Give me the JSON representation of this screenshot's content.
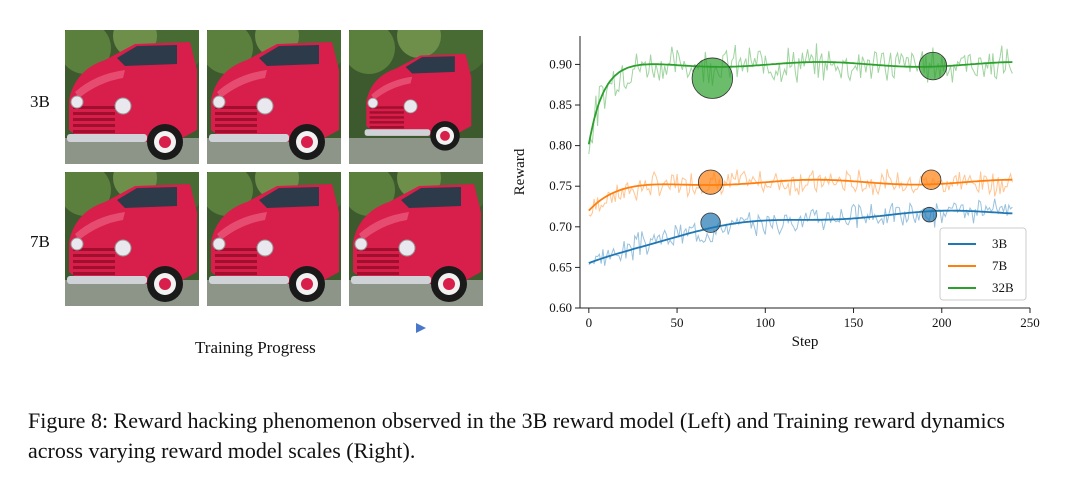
{
  "figure": {
    "row_labels": [
      "3B",
      "7B"
    ],
    "progress_label": "Training Progress",
    "caption": "Figure 8: Reward hacking phenomenon observed in the 3B reward model (Left) and Training reward dynamics across varying reward model scales (Right).",
    "colors": {
      "truck_red": "#d81e4a",
      "arrow_start": "#5fd0a8",
      "arrow_end": "#4a78c8"
    },
    "image_grid": {
      "rows": 2,
      "cols": 3,
      "image_alt": "red vintage pickup truck"
    }
  },
  "chart_data": {
    "type": "line",
    "title": "",
    "xlabel": "Step",
    "ylabel": "Reward",
    "xlim": [
      -5,
      250
    ],
    "ylim": [
      0.6,
      0.935
    ],
    "xticks": [
      0,
      50,
      100,
      150,
      200,
      250
    ],
    "yticks": [
      0.6,
      0.65,
      0.7,
      0.75,
      0.8,
      0.85,
      0.9
    ],
    "legend_position": "bottom-right",
    "series": [
      {
        "name": "3B",
        "color": "#1f77b4",
        "start": 0.655,
        "plateau": 0.72,
        "rate": 0.015,
        "noise": 0.012,
        "seed": 3
      },
      {
        "name": "7B",
        "color": "#ff7f0e",
        "start": 0.718,
        "plateau": 0.755,
        "rate": 0.06,
        "noise": 0.012,
        "seed": 7
      },
      {
        "name": "32B",
        "color": "#2ca02c",
        "start": 0.8,
        "plateau": 0.9,
        "rate": 0.12,
        "noise": 0.018,
        "seed": 32
      }
    ],
    "steps": 240,
    "highlights": [
      {
        "series": "32B",
        "x": 70,
        "y": 0.883,
        "r": 0.025,
        "color": "#2ca02c"
      },
      {
        "series": "32B",
        "x": 195,
        "y": 0.898,
        "r": 0.017,
        "color": "#2ca02c"
      },
      {
        "series": "7B",
        "x": 69,
        "y": 0.755,
        "r": 0.015,
        "color": "#ff7f0e"
      },
      {
        "series": "7B",
        "x": 194,
        "y": 0.758,
        "r": 0.012,
        "color": "#ff7f0e"
      },
      {
        "series": "3B",
        "x": 69,
        "y": 0.705,
        "r": 0.012,
        "color": "#1f77b4"
      },
      {
        "series": "3B",
        "x": 193,
        "y": 0.715,
        "r": 0.009,
        "color": "#1f77b4"
      }
    ]
  }
}
